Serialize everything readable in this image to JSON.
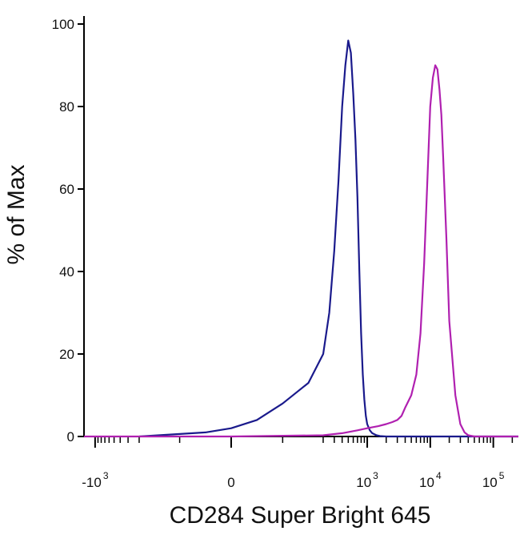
{
  "chart_data": {
    "type": "line",
    "title": "",
    "xlabel": "CD284 Super Bright 645",
    "ylabel": "% of Max",
    "xscale": "biexponential",
    "ylim": [
      0,
      100
    ],
    "yticks": [
      "0",
      "20",
      "40",
      "60",
      "80",
      "100"
    ],
    "xticks": [
      {
        "value": -1000,
        "base": "-10",
        "exp": "3"
      },
      {
        "value": 0,
        "base": "0",
        "exp": ""
      },
      {
        "value": 1000,
        "base": "10",
        "exp": "3"
      },
      {
        "value": 10000,
        "base": "10",
        "exp": "4"
      },
      {
        "value": 100000,
        "base": "10",
        "exp": "5"
      }
    ],
    "grid": false,
    "legend": "none",
    "series": [
      {
        "color": "#1a1a8c",
        "x": [
          -200,
          -50,
          0,
          50,
          100,
          150,
          200,
          250,
          300,
          350,
          400,
          450,
          500,
          550,
          600,
          650,
          700,
          750,
          800,
          850,
          900,
          950,
          1000,
          1100,
          1200,
          1400,
          1600,
          2000,
          3000,
          5000,
          10000,
          100000,
          250000
        ],
        "y": [
          0,
          1,
          2,
          4,
          8,
          13,
          20,
          30,
          45,
          62,
          80,
          90,
          96,
          93,
          83,
          72,
          58,
          40,
          25,
          15,
          9,
          5,
          3,
          1.5,
          0.8,
          0.3,
          0.1,
          0,
          0,
          0,
          0,
          0,
          0
        ]
      },
      {
        "color": "#b020b0",
        "x": [
          -1500,
          0,
          200,
          400,
          700,
          1000,
          1500,
          2000,
          2500,
          3000,
          3500,
          4000,
          5000,
          6000,
          7000,
          8000,
          9000,
          10000,
          11000,
          12000,
          13000,
          14000,
          15000,
          16000,
          18000,
          20000,
          25000,
          30000,
          35000,
          40000,
          50000,
          100000,
          250000
        ],
        "y": [
          0,
          0,
          0.3,
          0.8,
          1.5,
          2,
          2.5,
          3,
          3.5,
          4,
          5,
          7,
          10,
          15,
          25,
          42,
          62,
          80,
          87,
          90,
          89,
          84,
          78,
          68,
          48,
          28,
          10,
          3,
          1,
          0.3,
          0,
          0,
          0
        ]
      }
    ]
  }
}
